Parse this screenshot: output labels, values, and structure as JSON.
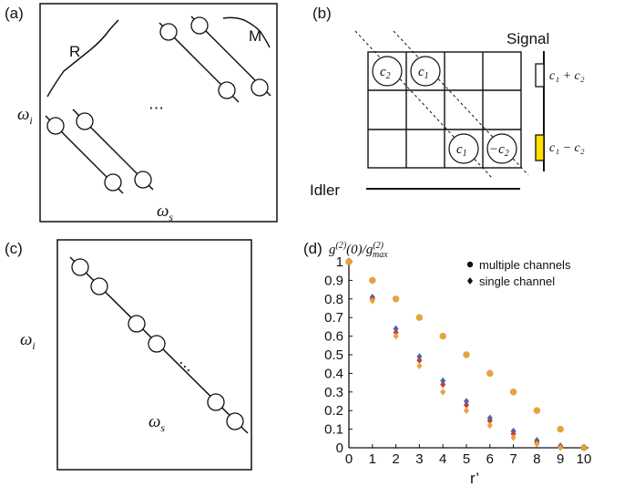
{
  "panels": {
    "a": {
      "label": "(a)",
      "brace_left_label": "R",
      "brace_right_label": "M",
      "y_symbol": "ω",
      "y_sub": "i",
      "x_symbol": "ω",
      "x_sub": "s",
      "dots": "⋯"
    },
    "b": {
      "label": "(b)",
      "signal_label": "Signal",
      "idler_label": "Idler",
      "cells": {
        "c2": "c",
        "c2_sub": "2",
        "c1": "c",
        "c1_sub": "1",
        "c1b": "c",
        "c1b_sub": "1",
        "neg_c2": "−c",
        "neg_c2_sub": "2"
      },
      "sum_label": "c₁ + c₂",
      "diff_label": "c₁ − c₂",
      "colors": {
        "yellow_box": "#ffe000",
        "outline": "#111111"
      }
    },
    "c": {
      "label": "(c)",
      "y_symbol": "ω",
      "y_sub": "i",
      "x_symbol": "ω",
      "x_sub": "s",
      "dots": "⋯"
    },
    "d": {
      "label": "(d)",
      "y_expr_main": "g",
      "y_expr_sup": "(2)",
      "y_expr_mid": "(0)/g",
      "y_expr_sup2": "(2)",
      "y_expr_sub2": "max"
    }
  },
  "chart_data": {
    "type": "scatter",
    "title": "",
    "xlabel": "r’",
    "ylabel": "g(2)(0)/g(2)max",
    "xlim": [
      0,
      10
    ],
    "ylim": [
      0,
      1
    ],
    "x_ticks": [
      "0",
      "1",
      "2",
      "3",
      "4",
      "5",
      "6",
      "7",
      "8",
      "9",
      "10"
    ],
    "y_ticks": [
      "0",
      "0.1",
      "0.2",
      "0.3",
      "0.4",
      "0.5",
      "0.6",
      "0.7",
      "0.8",
      "0.9",
      "1"
    ],
    "legend": [
      {
        "name": "multiple channels",
        "marker": "circle"
      },
      {
        "name": "single channel",
        "marker": "diamond"
      }
    ],
    "legend_position": "top-right",
    "x": [
      0,
      1,
      2,
      3,
      4,
      5,
      6,
      7,
      8,
      9,
      10
    ],
    "series": [
      {
        "name": "multiple channels (blue)",
        "marker": "circle",
        "color": "#3b6db5",
        "values": [
          1,
          0.9,
          0.8,
          0.7,
          0.6,
          0.5,
          0.4,
          0.3,
          0.2,
          0.1,
          0.0
        ]
      },
      {
        "name": "multiple channels (orange)",
        "marker": "circle",
        "color": "#e8a33a",
        "values": [
          1,
          0.9,
          0.8,
          0.7,
          0.6,
          0.5,
          0.4,
          0.3,
          0.2,
          0.1,
          0.0
        ]
      },
      {
        "name": "single channel (blue)",
        "marker": "diamond",
        "color": "#3b6db5",
        "values": [
          1,
          0.81,
          0.64,
          0.49,
          0.36,
          0.25,
          0.16,
          0.09,
          0.04,
          0.01,
          0.0
        ]
      },
      {
        "name": "single channel (red)",
        "marker": "diamond",
        "color": "#c43c3c",
        "values": [
          1,
          0.8,
          0.62,
          0.47,
          0.34,
          0.23,
          0.145,
          0.075,
          0.03,
          0.005,
          0.0
        ]
      },
      {
        "name": "single channel (orange)",
        "marker": "diamond",
        "color": "#e8a33a",
        "values": [
          1,
          0.79,
          0.6,
          0.44,
          0.3,
          0.2,
          0.12,
          0.055,
          0.02,
          0.0,
          0.0
        ]
      }
    ]
  }
}
